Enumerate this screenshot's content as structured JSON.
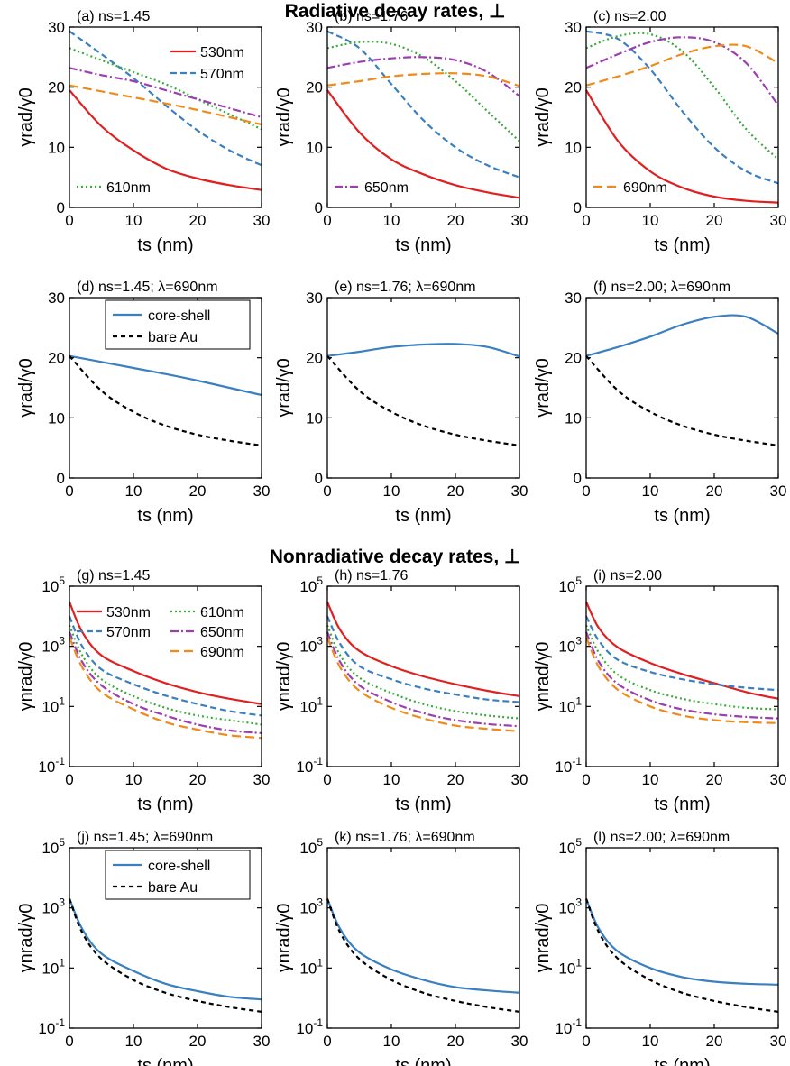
{
  "section_titles": {
    "radiative": "Radiative decay rates, ⊥",
    "nonradiative": "Nonradiative decay rates, ⊥"
  },
  "colors": {
    "530nm": "#e02020",
    "570nm": "#3a7fc0",
    "610nm": "#3aaa3a",
    "650nm": "#9b3fb0",
    "690nm": "#f08a1a",
    "core-shell": "#3a7fc0",
    "bare Au": "#000000"
  },
  "chart_data": [
    {
      "id": "a",
      "type": "line",
      "title": "(a) ns=1.45",
      "xlabel": "ts (nm)",
      "ylabel": "γrad/γ0",
      "xlim": [
        0,
        30
      ],
      "ylim": [
        0,
        30
      ],
      "xticks": [
        0,
        10,
        20,
        30
      ],
      "yticks": [
        0,
        10,
        20,
        30
      ],
      "yscale": "linear",
      "legend": [
        "530nm",
        "570nm",
        "610nm"
      ],
      "x": [
        0,
        5,
        10,
        15,
        20,
        25,
        30
      ],
      "series": [
        {
          "name": "530nm",
          "values": [
            19.5,
            13.5,
            9.5,
            6.5,
            4.8,
            3.7,
            2.9
          ]
        },
        {
          "name": "570nm",
          "values": [
            29.3,
            25.5,
            21.5,
            17,
            12.8,
            9.5,
            7
          ]
        },
        {
          "name": "610nm",
          "values": [
            26.5,
            24.5,
            22.5,
            20.5,
            18,
            15.5,
            13
          ]
        },
        {
          "name": "650nm",
          "values": [
            23.2,
            22,
            21,
            19.5,
            18,
            16.5,
            15
          ]
        },
        {
          "name": "690nm",
          "values": [
            20.3,
            19.3,
            18.3,
            17.3,
            16.2,
            15,
            13.8
          ]
        }
      ]
    },
    {
      "id": "b",
      "type": "line",
      "title": "(b) ns=1.76",
      "xlabel": "ts (nm)",
      "ylabel": "γrad/γ0",
      "xlim": [
        0,
        30
      ],
      "ylim": [
        0,
        30
      ],
      "xticks": [
        0,
        10,
        20,
        30
      ],
      "yticks": [
        0,
        10,
        20,
        30
      ],
      "yscale": "linear",
      "legend": [
        "650nm"
      ],
      "x": [
        0,
        5,
        10,
        15,
        20,
        25,
        30
      ],
      "series": [
        {
          "name": "530nm",
          "values": [
            19.5,
            12.5,
            8,
            5.5,
            3.7,
            2.5,
            1.6
          ]
        },
        {
          "name": "570nm",
          "values": [
            29.3,
            26.5,
            20.5,
            14.5,
            10,
            7,
            5
          ]
        },
        {
          "name": "610nm",
          "values": [
            26.5,
            27.5,
            27.2,
            25,
            21,
            16,
            11
          ]
        },
        {
          "name": "650nm",
          "values": [
            23.2,
            24.2,
            24.8,
            25,
            24.5,
            22.5,
            18.5
          ]
        },
        {
          "name": "690nm",
          "values": [
            20.3,
            21,
            21.8,
            22.2,
            22.3,
            21.8,
            20.2
          ]
        }
      ]
    },
    {
      "id": "c",
      "type": "line",
      "title": "(c) ns=2.00",
      "xlabel": "ts (nm)",
      "ylabel": "γrad/γ0",
      "xlim": [
        0,
        30
      ],
      "ylim": [
        0,
        30
      ],
      "xticks": [
        0,
        10,
        20,
        30
      ],
      "yticks": [
        0,
        10,
        20,
        30
      ],
      "yscale": "linear",
      "legend": [
        "690nm"
      ],
      "x": [
        0,
        5,
        10,
        15,
        20,
        25,
        30
      ],
      "series": [
        {
          "name": "530nm",
          "values": [
            19.5,
            11,
            6,
            3.3,
            1.8,
            1.1,
            0.8
          ]
        },
        {
          "name": "570nm",
          "values": [
            29.3,
            28,
            23,
            16,
            10,
            6,
            4
          ]
        },
        {
          "name": "610nm",
          "values": [
            26.5,
            28.5,
            28.8,
            26,
            20,
            13,
            8
          ]
        },
        {
          "name": "650nm",
          "values": [
            23.2,
            25.5,
            27.5,
            28.3,
            27.5,
            24,
            17
          ]
        },
        {
          "name": "690nm",
          "values": [
            20.3,
            21.8,
            23.5,
            25.5,
            26.8,
            26.8,
            24
          ]
        }
      ]
    },
    {
      "id": "d",
      "type": "line",
      "title": "(d) ns=1.45; λ=690nm",
      "xlabel": "ts (nm)",
      "ylabel": "γrad/γ0",
      "xlim": [
        0,
        30
      ],
      "ylim": [
        0,
        30
      ],
      "xticks": [
        0,
        10,
        20,
        30
      ],
      "yticks": [
        0,
        10,
        20,
        30
      ],
      "yscale": "linear",
      "legend": [
        "core-shell",
        "bare Au"
      ],
      "x": [
        0,
        5,
        10,
        15,
        20,
        25,
        30
      ],
      "series": [
        {
          "name": "core-shell",
          "values": [
            20.3,
            19.3,
            18.3,
            17.3,
            16.2,
            15,
            13.8
          ]
        },
        {
          "name": "bare Au",
          "values": [
            20.3,
            14.5,
            11,
            8.7,
            7.2,
            6.2,
            5.4
          ]
        }
      ]
    },
    {
      "id": "e",
      "type": "line",
      "title": "(e) ns=1.76; λ=690nm",
      "xlabel": "ts (nm)",
      "ylabel": "γrad/γ0",
      "xlim": [
        0,
        30
      ],
      "ylim": [
        0,
        30
      ],
      "xticks": [
        0,
        10,
        20,
        30
      ],
      "yticks": [
        0,
        10,
        20,
        30
      ],
      "yscale": "linear",
      "legend": [],
      "x": [
        0,
        5,
        10,
        15,
        20,
        25,
        30
      ],
      "series": [
        {
          "name": "core-shell",
          "values": [
            20.3,
            21,
            21.8,
            22.2,
            22.3,
            21.8,
            20.2
          ]
        },
        {
          "name": "bare Au",
          "values": [
            20.3,
            14.5,
            11,
            8.7,
            7.2,
            6.2,
            5.4
          ]
        }
      ]
    },
    {
      "id": "f",
      "type": "line",
      "title": "(f) ns=2.00; λ=690nm",
      "xlabel": "ts (nm)",
      "ylabel": "γrad/γ0",
      "xlim": [
        0,
        30
      ],
      "ylim": [
        0,
        30
      ],
      "xticks": [
        0,
        10,
        20,
        30
      ],
      "yticks": [
        0,
        10,
        20,
        30
      ],
      "yscale": "linear",
      "legend": [],
      "x": [
        0,
        5,
        10,
        15,
        20,
        25,
        30
      ],
      "series": [
        {
          "name": "core-shell",
          "values": [
            20.3,
            21.8,
            23.5,
            25.5,
            26.8,
            26.8,
            24
          ]
        },
        {
          "name": "bare Au",
          "values": [
            20.3,
            14.5,
            11,
            8.7,
            7.2,
            6.2,
            5.4
          ]
        }
      ]
    },
    {
      "id": "g",
      "type": "line",
      "title": "(g) ns=1.45",
      "xlabel": "ts (nm)",
      "ylabel": "γnrad/γ0",
      "xlim": [
        0,
        30
      ],
      "ylim": [
        0.1,
        100000
      ],
      "xticks": [
        0,
        10,
        20,
        30
      ],
      "yticks": [
        0.1,
        10,
        1000,
        100000
      ],
      "yscale": "log",
      "legend": [
        "530nm",
        "610nm",
        "570nm",
        "650nm",
        "690nm"
      ],
      "x": [
        0,
        2,
        5,
        10,
        15,
        20,
        25,
        30
      ],
      "series": [
        {
          "name": "530nm",
          "values": [
            30000,
            3000,
            500,
            150,
            60,
            30,
            18,
            12
          ]
        },
        {
          "name": "570nm",
          "values": [
            10000,
            1000,
            170,
            55,
            23,
            12,
            7,
            5
          ]
        },
        {
          "name": "610nm",
          "values": [
            5000,
            500,
            80,
            22,
            9,
            5,
            3.5,
            2.5
          ]
        },
        {
          "name": "650nm",
          "values": [
            3000,
            300,
            50,
            12,
            5,
            2.5,
            1.6,
            1.3
          ]
        },
        {
          "name": "690nm",
          "values": [
            2000,
            200,
            30,
            8,
            3,
            1.7,
            1.1,
            0.9
          ]
        }
      ]
    },
    {
      "id": "h",
      "type": "line",
      "title": "(h) ns=1.76",
      "xlabel": "ts (nm)",
      "ylabel": "γnrad/γ0",
      "xlim": [
        0,
        30
      ],
      "ylim": [
        0.1,
        100000
      ],
      "xticks": [
        0,
        10,
        20,
        30
      ],
      "yticks": [
        0.1,
        10,
        1000,
        100000
      ],
      "yscale": "log",
      "legend": [],
      "x": [
        0,
        2,
        5,
        10,
        15,
        20,
        25,
        30
      ],
      "series": [
        {
          "name": "530nm",
          "values": [
            30000,
            3500,
            700,
            220,
            100,
            55,
            33,
            22
          ]
        },
        {
          "name": "570nm",
          "values": [
            10000,
            1200,
            220,
            80,
            40,
            25,
            17,
            14
          ]
        },
        {
          "name": "610nm",
          "values": [
            5000,
            500,
            90,
            28,
            12,
            7,
            5,
            4
          ]
        },
        {
          "name": "650nm",
          "values": [
            3000,
            300,
            50,
            14,
            6,
            3.5,
            2.6,
            2.2
          ]
        },
        {
          "name": "690nm",
          "values": [
            2000,
            200,
            33,
            9,
            4,
            2.3,
            1.8,
            1.5
          ]
        }
      ]
    },
    {
      "id": "i",
      "type": "line",
      "title": "(i) ns=2.00",
      "xlabel": "ts (nm)",
      "ylabel": "γnrad/γ0",
      "xlim": [
        0,
        30
      ],
      "ylim": [
        0.1,
        100000
      ],
      "xticks": [
        0,
        10,
        20,
        30
      ],
      "yticks": [
        0.1,
        10,
        1000,
        100000
      ],
      "yscale": "log",
      "legend": [],
      "x": [
        0,
        2,
        5,
        10,
        15,
        20,
        25,
        30
      ],
      "series": [
        {
          "name": "530nm",
          "values": [
            30000,
            4000,
            900,
            280,
            120,
            60,
            30,
            18
          ]
        },
        {
          "name": "570nm",
          "values": [
            10000,
            1500,
            350,
            140,
            80,
            55,
            42,
            35
          ]
        },
        {
          "name": "610nm",
          "values": [
            5000,
            600,
            110,
            35,
            18,
            12,
            9,
            8
          ]
        },
        {
          "name": "650nm",
          "values": [
            3000,
            300,
            55,
            16,
            8,
            5.5,
            4.5,
            4
          ]
        },
        {
          "name": "690nm",
          "values": [
            2000,
            200,
            35,
            10,
            5,
            3.5,
            3,
            2.8
          ]
        }
      ]
    },
    {
      "id": "j",
      "type": "line",
      "title": "(j) ns=1.45; λ=690nm",
      "xlabel": "ts (nm)",
      "ylabel": "γnrad/γ0",
      "xlim": [
        0,
        30
      ],
      "ylim": [
        0.1,
        100000
      ],
      "xticks": [
        0,
        10,
        20,
        30
      ],
      "yticks": [
        0.1,
        10,
        1000,
        100000
      ],
      "yscale": "log",
      "legend": [
        "core-shell",
        "bare Au"
      ],
      "x": [
        0,
        2,
        5,
        10,
        15,
        20,
        25,
        30
      ],
      "series": [
        {
          "name": "core-shell",
          "values": [
            2000,
            200,
            30,
            8,
            3,
            1.7,
            1.1,
            0.9
          ]
        },
        {
          "name": "bare Au",
          "values": [
            2000,
            150,
            20,
            4,
            1.5,
            0.8,
            0.5,
            0.35
          ]
        }
      ]
    },
    {
      "id": "k",
      "type": "line",
      "title": "(k) ns=1.76; λ=690nm",
      "xlabel": "ts (nm)",
      "ylabel": "γnrad/γ0",
      "xlim": [
        0,
        30
      ],
      "ylim": [
        0.1,
        100000
      ],
      "xticks": [
        0,
        10,
        20,
        30
      ],
      "yticks": [
        0.1,
        10,
        1000,
        100000
      ],
      "yscale": "log",
      "legend": [],
      "x": [
        0,
        2,
        5,
        10,
        15,
        20,
        25,
        30
      ],
      "series": [
        {
          "name": "core-shell",
          "values": [
            2000,
            200,
            33,
            9,
            4,
            2.3,
            1.8,
            1.5
          ]
        },
        {
          "name": "bare Au",
          "values": [
            2000,
            150,
            20,
            4,
            1.5,
            0.8,
            0.5,
            0.35
          ]
        }
      ]
    },
    {
      "id": "l",
      "type": "line",
      "title": "(l) ns=2.00; λ=690nm",
      "xlabel": "ts (nm)",
      "ylabel": "γnrad/γ0",
      "xlim": [
        0,
        30
      ],
      "ylim": [
        0.1,
        100000
      ],
      "xticks": [
        0,
        10,
        20,
        30
      ],
      "yticks": [
        0.1,
        10,
        1000,
        100000
      ],
      "yscale": "log",
      "legend": [],
      "x": [
        0,
        2,
        5,
        10,
        15,
        20,
        25,
        30
      ],
      "series": [
        {
          "name": "core-shell",
          "values": [
            2000,
            200,
            35,
            10,
            5,
            3.5,
            3,
            2.8
          ]
        },
        {
          "name": "bare Au",
          "values": [
            2000,
            150,
            20,
            4,
            1.5,
            0.8,
            0.5,
            0.35
          ]
        }
      ]
    }
  ]
}
